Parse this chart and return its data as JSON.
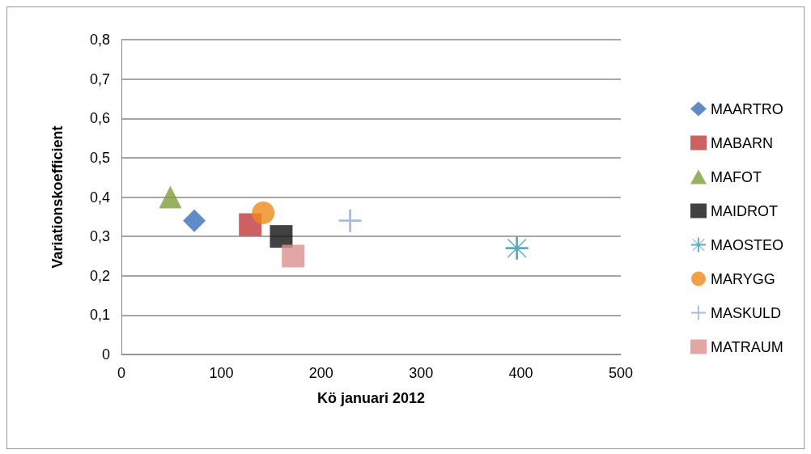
{
  "chart_data": {
    "type": "scatter",
    "xlabel": "Kö januari 2012",
    "ylabel": "Variationskoefficient",
    "xlim": [
      0,
      500
    ],
    "xticks": [
      0,
      100,
      200,
      300,
      400,
      500
    ],
    "ylim": [
      0,
      0.8
    ],
    "yticks": [
      {
        "value": 0,
        "label": "0"
      },
      {
        "value": 0.1,
        "label": "0,1"
      },
      {
        "value": 0.2,
        "label": "0,2"
      },
      {
        "value": 0.3,
        "label": "0,3"
      },
      {
        "value": 0.4,
        "label": "0,4"
      },
      {
        "value": 0.5,
        "label": "0,5"
      },
      {
        "value": 0.6,
        "label": "0,6"
      },
      {
        "value": 0.7,
        "label": "0,7"
      },
      {
        "value": 0.8,
        "label": "0,8"
      }
    ],
    "grid": "y",
    "legend": "right",
    "series": [
      {
        "name": "MAARTRO",
        "color": "#3a6eb5",
        "marker": "diamond",
        "x": [
          73
        ],
        "values": [
          0.34
        ]
      },
      {
        "name": "MABARN",
        "color": "#c0393b",
        "marker": "square",
        "x": [
          129
        ],
        "values": [
          0.33
        ]
      },
      {
        "name": "MAFOT",
        "color": "#7e9c3a",
        "marker": "triangle",
        "x": [
          49
        ],
        "values": [
          0.4
        ]
      },
      {
        "name": "MAIDROT",
        "color": "#111111",
        "marker": "square",
        "x": [
          160
        ],
        "values": [
          0.3
        ]
      },
      {
        "name": "MAOSTEO",
        "color": "#2e97b0",
        "marker": "star",
        "x": [
          396
        ],
        "values": [
          0.27
        ]
      },
      {
        "name": "MARYGG",
        "color": "#f08a1c",
        "marker": "circle",
        "x": [
          142
        ],
        "values": [
          0.36
        ]
      },
      {
        "name": "MASKULD",
        "color": "#94a9d4",
        "marker": "cross",
        "x": [
          229
        ],
        "values": [
          0.34
        ]
      },
      {
        "name": "MATRAUM",
        "color": "#d9908f",
        "marker": "square",
        "x": [
          172
        ],
        "values": [
          0.25
        ]
      }
    ]
  }
}
